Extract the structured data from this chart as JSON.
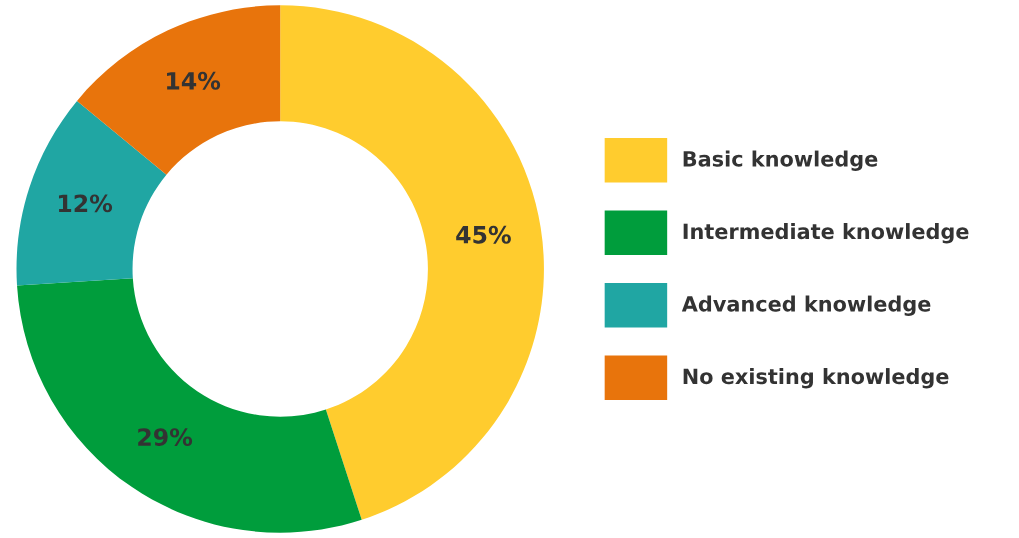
{
  "chart_data": {
    "type": "donut",
    "categories": [
      "Basic knowledge",
      "Intermediate knowledge",
      "Advanced knowledge",
      "No existing knowledge"
    ],
    "values": [
      45,
      29,
      12,
      14
    ],
    "colors": [
      "#ffcc2e",
      "#009d3c",
      "#20a6a3",
      "#e8740c"
    ],
    "value_labels": [
      "45%",
      "29%",
      "12%",
      "14%"
    ],
    "legend": "right"
  }
}
